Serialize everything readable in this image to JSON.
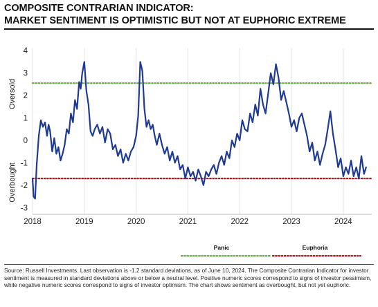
{
  "title_lines": [
    "COMPOSITE CONTRARIAN INDICATOR:",
    "MARKET SENTIMENT IS OPTIMISTIC BUT NOT AT EUPHORIC EXTREME"
  ],
  "footnote": "Source: Russell Investments. Last observation is -1.2 standard deviations, as of June 10, 2024. The Composite Contrarian Indicator for investor sentiment is measured in standard deviations above or below a neutral level. Positive numeric scores correspond to signs of investor pessimism, while negative numeric scores correspond to signs of investor optimism. The chart shows sentiment as overbought, but not yet euphoric.",
  "colors": {
    "line": "#1f3a93",
    "panic": "#6aa84f",
    "euphoria": "#a61c1c"
  },
  "chart_data": {
    "type": "line",
    "title": "COMPOSITE CONTRARIAN INDICATOR: MARKET SENTIMENT IS OPTIMISTIC BUT NOT AT EUPHORIC EXTREME",
    "xlabel": "",
    "ylabel": "",
    "side_labels": {
      "upper": "Oversold",
      "lower": "Overbought"
    },
    "xlim": [
      2018.0,
      2024.55
    ],
    "ylim": [
      -3.3,
      4.1
    ],
    "x_ticks": [
      2018,
      2019,
      2020,
      2021,
      2022,
      2023,
      2024
    ],
    "x_tick_labels": [
      "2018",
      "2019",
      "2020",
      "2021",
      "2022",
      "2023",
      "2024"
    ],
    "y_ticks": [
      -3,
      -2,
      -1,
      0,
      1,
      2,
      3,
      4
    ],
    "y_tick_labels": [
      "-3",
      "-2",
      "-1",
      "0",
      "1",
      "2",
      "3",
      "4"
    ],
    "grid": "vertical",
    "thresholds": [
      {
        "name": "Panic",
        "value": 2.55,
        "color": "#6aa84f",
        "style": "dotted"
      },
      {
        "name": "Euphoria",
        "value": -1.7,
        "color": "#a61c1c",
        "style": "dotted"
      }
    ],
    "legend": {
      "placement": "bottom",
      "entries": [
        {
          "label": "Panic",
          "color": "#6aa84f"
        },
        {
          "label": "Euphoria",
          "color": "#a61c1c"
        }
      ]
    },
    "series": [
      {
        "name": "",
        "x": [
          2018.0,
          2018.02,
          2018.05,
          2018.08,
          2018.12,
          2018.16,
          2018.2,
          2018.24,
          2018.28,
          2018.31,
          2018.34,
          2018.38,
          2018.42,
          2018.46,
          2018.5,
          2018.54,
          2018.58,
          2018.62,
          2018.66,
          2018.7,
          2018.74,
          2018.78,
          2018.82,
          2018.86,
          2018.9,
          2018.93,
          2018.96,
          2019.0,
          2019.04,
          2019.08,
          2019.12,
          2019.16,
          2019.2,
          2019.25,
          2019.3,
          2019.35,
          2019.4,
          2019.45,
          2019.5,
          2019.55,
          2019.6,
          2019.65,
          2019.7,
          2019.75,
          2019.8,
          2019.85,
          2019.9,
          2019.95,
          2020.0,
          2020.04,
          2020.08,
          2020.12,
          2020.16,
          2020.2,
          2020.24,
          2020.28,
          2020.32,
          2020.36,
          2020.4,
          2020.45,
          2020.5,
          2020.55,
          2020.6,
          2020.65,
          2020.7,
          2020.75,
          2020.8,
          2020.85,
          2020.9,
          2020.95,
          2021.0,
          2021.05,
          2021.1,
          2021.15,
          2021.2,
          2021.25,
          2021.3,
          2021.35,
          2021.4,
          2021.45,
          2021.5,
          2021.55,
          2021.6,
          2021.65,
          2021.7,
          2021.75,
          2021.8,
          2021.85,
          2021.9,
          2021.95,
          2022.0,
          2022.05,
          2022.1,
          2022.15,
          2022.2,
          2022.25,
          2022.3,
          2022.35,
          2022.4,
          2022.45,
          2022.5,
          2022.55,
          2022.6,
          2022.65,
          2022.7,
          2022.75,
          2022.8,
          2022.85,
          2022.9,
          2022.95,
          2023.0,
          2023.05,
          2023.1,
          2023.15,
          2023.2,
          2023.25,
          2023.3,
          2023.35,
          2023.4,
          2023.45,
          2023.5,
          2023.55,
          2023.6,
          2023.65,
          2023.7,
          2023.75,
          2023.8,
          2023.85,
          2023.9,
          2023.95,
          2024.0,
          2024.05,
          2024.1,
          2024.15,
          2024.2,
          2024.25,
          2024.3,
          2024.35,
          2024.4,
          2024.44
        ],
        "y": [
          -1.7,
          -2.5,
          -2.6,
          -1.1,
          0.2,
          0.9,
          0.6,
          0.8,
          0.2,
          0.7,
          0.4,
          -0.5,
          0.1,
          -0.6,
          -0.3,
          -0.9,
          -0.6,
          -0.2,
          0.5,
          0.3,
          1.2,
          0.8,
          1.8,
          1.4,
          2.6,
          2.3,
          3.0,
          3.5,
          2.2,
          1.6,
          0.4,
          0.2,
          0.5,
          0.7,
          0.3,
          0.6,
          -0.1,
          0.5,
          0.3,
          -0.4,
          -0.2,
          -0.7,
          -0.4,
          -1.0,
          -0.6,
          -0.9,
          -0.5,
          -0.3,
          0.2,
          1.1,
          3.5,
          3.1,
          1.4,
          0.6,
          0.9,
          0.5,
          0.7,
          0.2,
          -0.2,
          0.3,
          -0.2,
          -0.6,
          -0.3,
          -0.9,
          -0.5,
          -1.0,
          -0.7,
          -1.3,
          -1.1,
          -1.7,
          -1.2,
          -1.6,
          -1.4,
          -1.8,
          -1.3,
          -1.6,
          -2.0,
          -1.4,
          -1.6,
          -1.3,
          -1.1,
          -1.5,
          -1.0,
          -0.7,
          -1.1,
          -0.5,
          -0.8,
          0.0,
          -0.3,
          0.3,
          0.0,
          0.9,
          0.5,
          0.4,
          1.2,
          0.8,
          1.6,
          1.1,
          2.3,
          1.6,
          1.2,
          2.1,
          3.0,
          2.5,
          3.4,
          2.8,
          1.8,
          2.2,
          1.7,
          1.2,
          0.6,
          0.9,
          0.4,
          1.0,
          1.2,
          0.7,
          0.2,
          -0.5,
          -0.1,
          -0.9,
          -0.5,
          -1.1,
          -0.6,
          -0.2,
          0.5,
          1.3,
          0.3,
          -0.4,
          -1.2,
          -0.8,
          -1.6,
          -1.2,
          -1.5,
          -0.9,
          -1.6,
          -1.2,
          -1.7,
          -0.7,
          -1.5,
          -1.2
        ]
      }
    ]
  }
}
